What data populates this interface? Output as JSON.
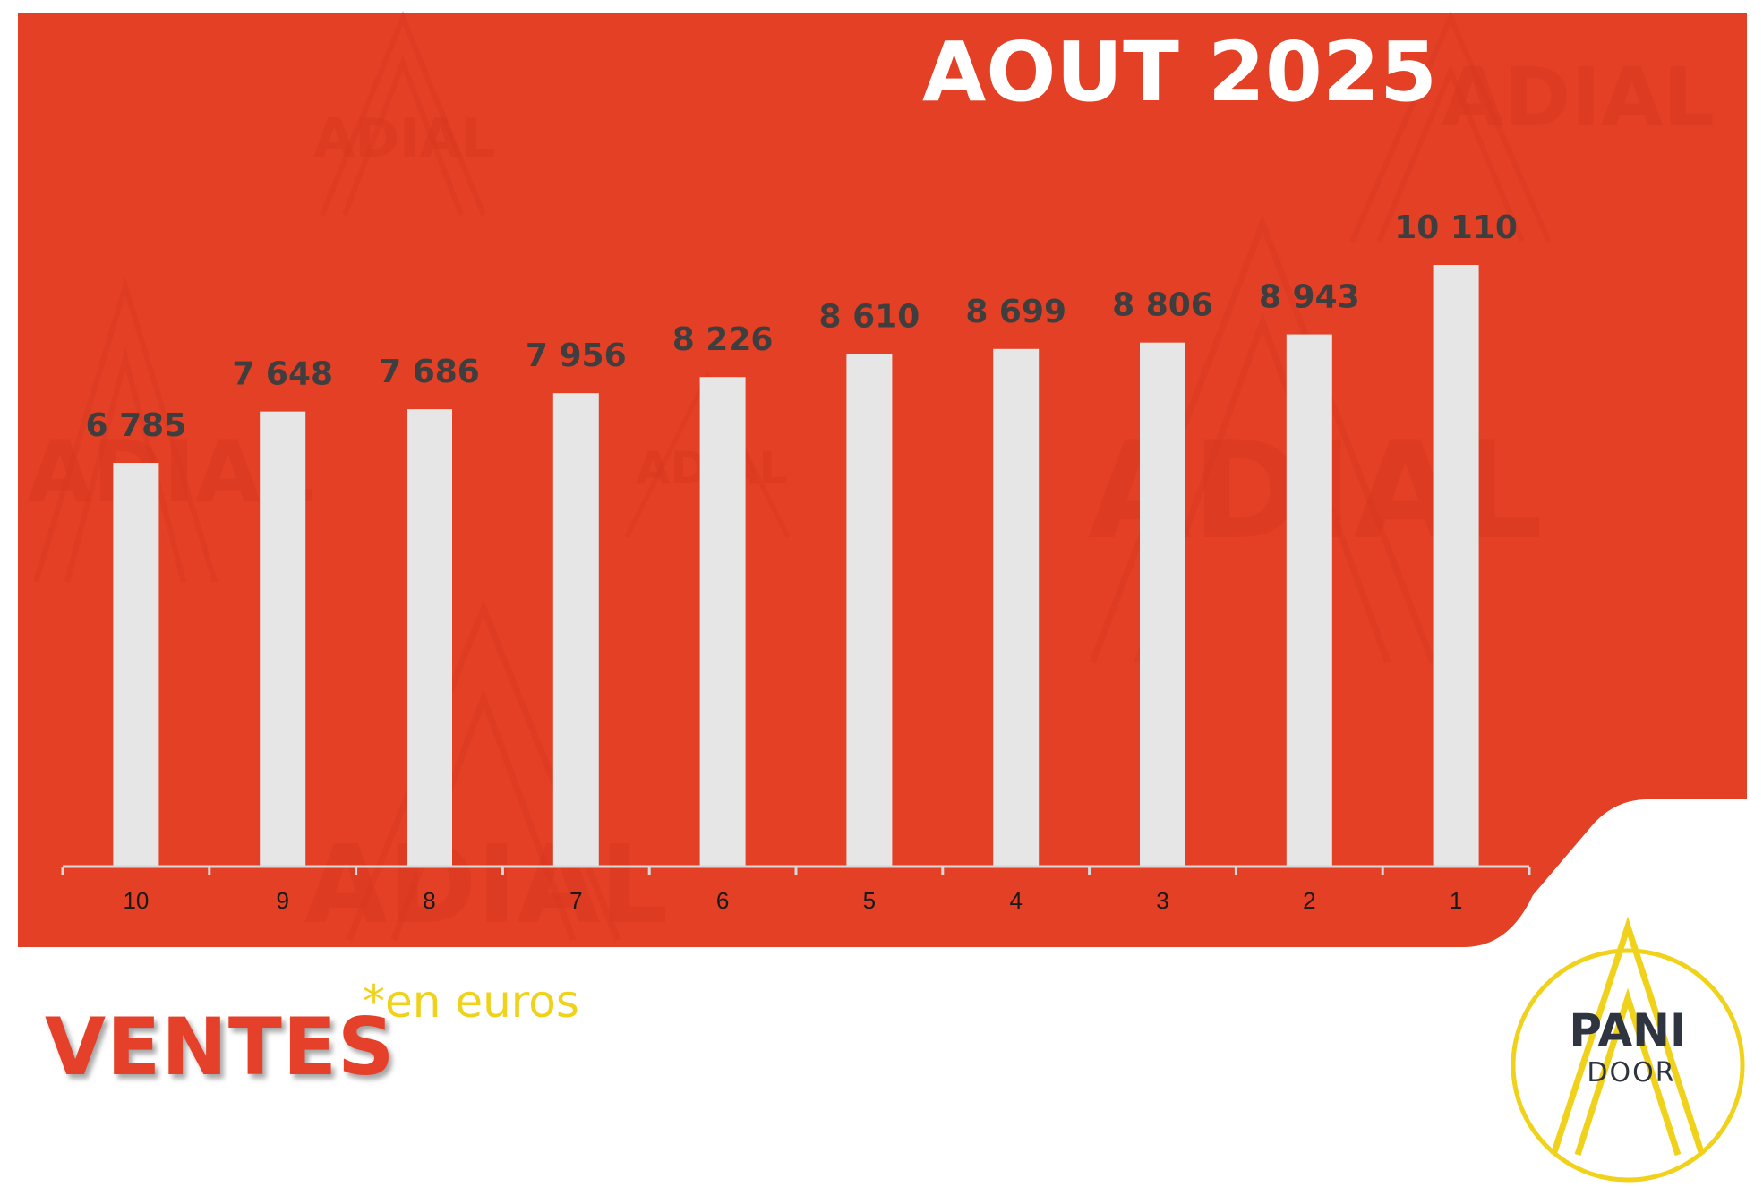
{
  "title": "AOUT 2025",
  "colors": {
    "background_red": "#e34026",
    "bar": "#e6e6e6",
    "label": "#3e3e3e",
    "accent_yellow": "#f0d21a"
  },
  "watermark_text": "ADIAL",
  "footer": {
    "heading": "VENTES",
    "note": "*en euros"
  },
  "logo": {
    "line1": "PANI",
    "line2": "DOOR"
  },
  "chart_data": {
    "type": "bar",
    "categories": [
      "10",
      "9",
      "8",
      "7",
      "6",
      "5",
      "4",
      "3",
      "2",
      "1"
    ],
    "values": [
      6785,
      7648,
      7686,
      7956,
      8226,
      8610,
      8699,
      8806,
      8943,
      10110
    ],
    "value_labels": [
      "6 785",
      "7 648",
      "7 686",
      "7 956",
      "8 226",
      "8 610",
      "8 699",
      "8 806",
      "8 943",
      "10 110"
    ],
    "title": "AOUT 2025",
    "ylim": [
      0,
      10110
    ],
    "grid": false,
    "legend": "none"
  }
}
